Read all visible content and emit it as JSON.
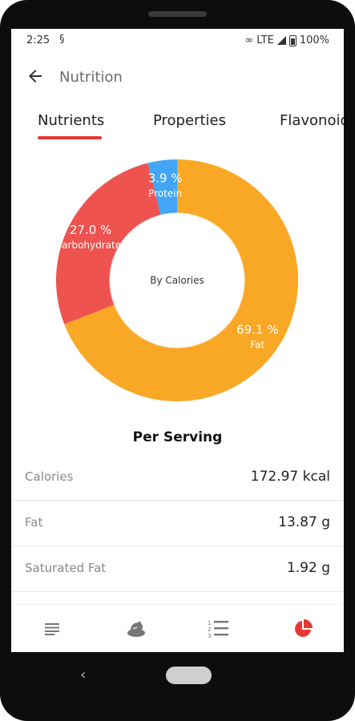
{
  "status_bar": {
    "time": "2:25",
    "network": "LTE",
    "battery": "100%"
  },
  "app_bar": {
    "title": "Nutrition"
  },
  "tabs": [
    {
      "label": "Nutrients",
      "selected": true
    },
    {
      "label": "Properties",
      "selected": false
    },
    {
      "label": "Flavonoids",
      "selected": false
    }
  ],
  "colors": {
    "accent": "#e53935",
    "carbohydrates": "#ef5350",
    "protein": "#42a5f5",
    "fat": "#f9a825"
  },
  "chart_data": {
    "type": "pie",
    "center_label": "By Calories",
    "slices": [
      {
        "name": "Fat",
        "value": 69.1,
        "label": "69.1 %",
        "color": "#f9a825"
      },
      {
        "name": "Carbohydrates",
        "value": 27.0,
        "label": "27.0 %",
        "color": "#ef5350"
      },
      {
        "name": "Protein",
        "value": 3.9,
        "label": "3.9 %",
        "color": "#42a5f5"
      }
    ]
  },
  "per_serving": {
    "heading": "Per Serving",
    "rows": [
      {
        "label": "Calories",
        "value": "172.97 kcal"
      },
      {
        "label": "Fat",
        "value": "13.87 g"
      },
      {
        "label": "Saturated Fat",
        "value": "1.92 g"
      }
    ]
  },
  "bottom_nav": [
    {
      "name": "ingredients-list-icon",
      "selected": false
    },
    {
      "name": "food-icon",
      "selected": false
    },
    {
      "name": "numbered-steps-icon",
      "selected": false
    },
    {
      "name": "pie-chart-icon",
      "selected": true
    }
  ]
}
